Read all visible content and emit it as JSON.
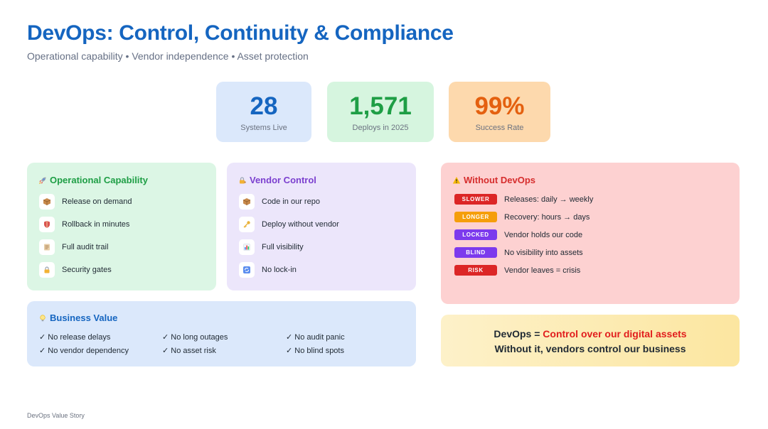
{
  "header": {
    "title": "DevOps: Control, Continuity & Compliance",
    "subtitle": "Operational capability • Vendor independence • Asset protection"
  },
  "stats": [
    {
      "value": "28",
      "label": "Systems Live"
    },
    {
      "value": "1,571",
      "label": "Deploys in 2025"
    },
    {
      "value": "99%",
      "label": "Success Rate"
    }
  ],
  "operational": {
    "title": "Operational Capability",
    "icon": "rocket-icon",
    "items": [
      {
        "icon": "package-icon",
        "label": "Release on demand"
      },
      {
        "icon": "shield-icon",
        "label": "Rollback in minutes"
      },
      {
        "icon": "ledger-icon",
        "label": "Full audit trail"
      },
      {
        "icon": "lock-icon",
        "label": "Security gates"
      }
    ]
  },
  "vendor": {
    "title": "Vendor Control",
    "icon": "lock-key-icon",
    "items": [
      {
        "icon": "package-icon",
        "label": "Code in our repo"
      },
      {
        "icon": "key-icon",
        "label": "Deploy without vendor"
      },
      {
        "icon": "bar-chart-icon",
        "label": "Full visibility"
      },
      {
        "icon": "refresh-icon",
        "label": "No lock-in"
      }
    ]
  },
  "without": {
    "title": "Without DevOps",
    "icon": "warning-icon",
    "rows": [
      {
        "badge": "SLOWER",
        "text": "Releases: daily → weekly",
        "color": "#dc2626"
      },
      {
        "badge": "LONGER",
        "text": "Recovery: hours → days",
        "color": "#f59e0b"
      },
      {
        "badge": "LOCKED",
        "text": "Vendor holds our code",
        "color": "#7c3aed"
      },
      {
        "badge": "BLIND",
        "text": "No visibility into assets",
        "color": "#7c3aed"
      },
      {
        "badge": "RISK",
        "text": "Vendor leaves = crisis",
        "color": "#dc2626"
      }
    ]
  },
  "business": {
    "title": "Business Value",
    "icon": "lightbulb-icon",
    "checks": [
      "✓ No release delays",
      "✓ No long outages",
      "✓ No audit panic",
      "✓ No vendor dependency",
      "✓ No asset risk",
      "✓ No blind spots"
    ]
  },
  "callout": {
    "line1_prefix": "DevOps = ",
    "line1_highlight": "Control over our digital assets",
    "line2": "Without it, vendors control our business"
  },
  "footer": "DevOps Value Story",
  "colors": {
    "brand_blue": "#1565c0",
    "green": "#1e9e45",
    "orange": "#e4600f",
    "purple": "#7b3fcf",
    "red": "#d62d2d"
  }
}
